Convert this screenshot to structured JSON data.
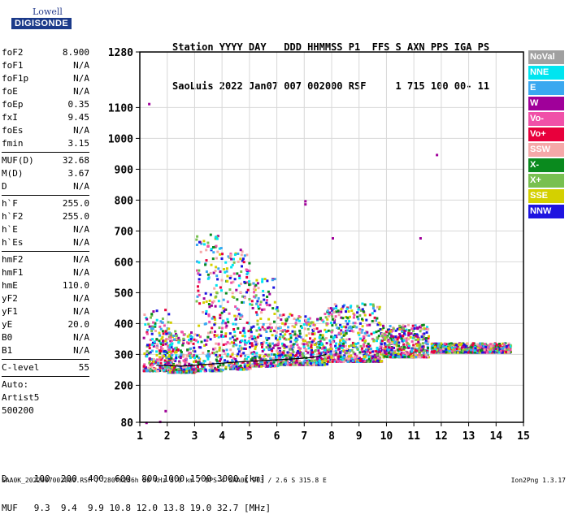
{
  "logo": {
    "line1": "Lowell",
    "line2": "DIGISONDE"
  },
  "header": {
    "line1": "Station YYYY DAY   DDD HHMMSS P1  FFS S AXN PPS IGA PS",
    "line2": "SaoLuis 2022 Jan07 007 002000 RSF     1 715 100 00- 11"
  },
  "params": {
    "group1": [
      {
        "k": "foF2",
        "v": "8.900"
      },
      {
        "k": "foF1",
        "v": "N/A"
      },
      {
        "k": "foF1p",
        "v": "N/A"
      },
      {
        "k": "foE",
        "v": "N/A"
      },
      {
        "k": "foEp",
        "v": "0.35"
      },
      {
        "k": "fxI",
        "v": "9.45"
      },
      {
        "k": "foEs",
        "v": "N/A"
      },
      {
        "k": "fmin",
        "v": "3.15"
      }
    ],
    "group2": [
      {
        "k": "MUF(D)",
        "v": "32.68"
      },
      {
        "k": "M(D)",
        "v": "3.67"
      },
      {
        "k": "D",
        "v": "N/A"
      }
    ],
    "group3": [
      {
        "k": "h`F",
        "v": "255.0"
      },
      {
        "k": "h`F2",
        "v": "255.0"
      },
      {
        "k": "h`E",
        "v": "N/A"
      },
      {
        "k": "h`Es",
        "v": "N/A"
      }
    ],
    "group4": [
      {
        "k": "hmF2",
        "v": "N/A"
      },
      {
        "k": "hmF1",
        "v": "N/A"
      },
      {
        "k": "hmE",
        "v": "110.0"
      },
      {
        "k": "yF2",
        "v": "N/A"
      },
      {
        "k": "yF1",
        "v": "N/A"
      },
      {
        "k": "yE",
        "v": "20.0"
      },
      {
        "k": "B0",
        "v": "N/A"
      },
      {
        "k": "B1",
        "v": "N/A"
      }
    ],
    "group5": [
      {
        "k": "C-level",
        "v": "55"
      }
    ],
    "auto": [
      "Auto:",
      "Artist5",
      "500200"
    ]
  },
  "legend": [
    {
      "label": "NoVal",
      "color": "#a0a0a0"
    },
    {
      "label": "NNE",
      "color": "#00e5f0"
    },
    {
      "label": "E",
      "color": "#3aa8f0"
    },
    {
      "label": "W",
      "color": "#a0009a"
    },
    {
      "label": "Vo-",
      "color": "#f050a8"
    },
    {
      "label": "Vo+",
      "color": "#e8003c"
    },
    {
      "label": "SSW",
      "color": "#f5a8a8"
    },
    {
      "label": "X-",
      "color": "#0a8a1e"
    },
    {
      "label": "X+",
      "color": "#78c050"
    },
    {
      "label": "SSE",
      "color": "#d4d000"
    },
    {
      "label": "NNW",
      "color": "#1e14e0"
    }
  ],
  "footer": {
    "line1": "D     100  200  400  600  800 1000 1500 3000 [km]",
    "line2": "MUF   9.3  9.4  9.9 10.8 12.0 13.8 19.0 32.7 [MHz]",
    "line3": "SAA0K_2022007002000.RSF / 280fx256h 50 kHz 5.0 km / DPS-4 SAA0K 903 / 2.6 S 315.8 E",
    "version": "Ion2Png 1.3.17"
  },
  "chart_data": {
    "type": "scatter",
    "title": "",
    "xlabel": "",
    "ylabel": "",
    "xlim": [
      1,
      15
    ],
    "ylim": [
      80,
      1280
    ],
    "x_ticks": [
      1,
      2,
      3,
      4,
      5,
      6,
      7,
      8,
      9,
      10,
      11,
      12,
      13,
      14,
      15
    ],
    "y_ticks": [
      80,
      200,
      300,
      400,
      500,
      600,
      700,
      800,
      900,
      1000,
      1100,
      1280
    ],
    "grid": true,
    "legend_position": "right",
    "trace": {
      "name": "",
      "x": [
        1.6,
        2.5,
        3.5,
        4.5,
        5.5,
        6.5,
        7.3,
        7.8
      ],
      "y": [
        265,
        262,
        268,
        275,
        280,
        285,
        290,
        300
      ]
    },
    "clusters": [
      {
        "x": [
          1.1,
          2.1
        ],
        "y": [
          250,
          450
        ]
      },
      {
        "x": [
          2.0,
          3.0
        ],
        "y": [
          245,
          380
        ]
      },
      {
        "x": [
          3.0,
          4.0
        ],
        "y": [
          250,
          700
        ]
      },
      {
        "x": [
          4.0,
          5.0
        ],
        "y": [
          255,
          650
        ]
      },
      {
        "x": [
          5.0,
          6.0
        ],
        "y": [
          265,
          550
        ]
      },
      {
        "x": [
          6.0,
          7.8
        ],
        "y": [
          270,
          440
        ]
      },
      {
        "x": [
          7.8,
          9.8
        ],
        "y": [
          280,
          470
        ]
      },
      {
        "x": [
          9.8,
          11.5
        ],
        "y": [
          295,
          400
        ]
      },
      {
        "x": [
          11.6,
          14.5
        ],
        "y": [
          310,
          340
        ]
      }
    ],
    "outliers": [
      {
        "x": 1.3,
        "y": 1115
      },
      {
        "x": 7.0,
        "y": 790
      },
      {
        "x": 7.0,
        "y": 800
      },
      {
        "x": 11.8,
        "y": 950
      },
      {
        "x": 11.2,
        "y": 680
      },
      {
        "x": 8.0,
        "y": 680
      },
      {
        "x": 1.2,
        "y": 82
      },
      {
        "x": 1.7,
        "y": 85
      },
      {
        "x": 1.9,
        "y": 120
      }
    ]
  }
}
